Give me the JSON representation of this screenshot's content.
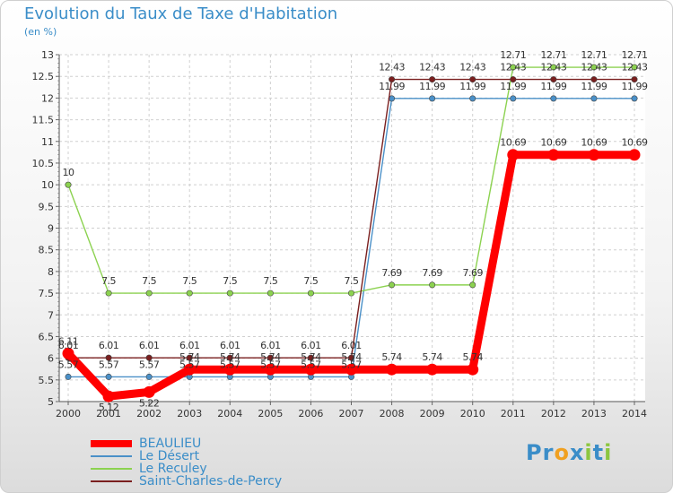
{
  "chart_data": {
    "type": "line",
    "title": "Evolution du Taux de Taxe d'Habitation",
    "ylabel": "(en %)",
    "xlabel": "",
    "ylim": [
      5,
      13
    ],
    "yticks": [
      "5",
      "5.5",
      "6",
      "6.5",
      "7",
      "7.5",
      "8",
      "8.5",
      "9",
      "9.5",
      "10",
      "10.5",
      "11",
      "11.5",
      "12",
      "12.5",
      "13"
    ],
    "categories": [
      "2000",
      "2001",
      "2002",
      "2003",
      "2004",
      "2005",
      "2006",
      "2007",
      "2008",
      "2009",
      "2010",
      "2011",
      "2012",
      "2013",
      "2014"
    ],
    "series": [
      {
        "name": "BEAULIEU",
        "color": "#ff0000",
        "values": [
          6.11,
          5.12,
          5.22,
          5.74,
          5.74,
          5.74,
          5.74,
          5.74,
          5.74,
          5.74,
          5.74,
          10.69,
          10.69,
          10.69,
          10.69
        ],
        "labels": [
          "6.11",
          "5.12",
          "5.22",
          "5.74",
          "5.74",
          "5.74",
          "5.74",
          "5.74",
          "5.74",
          "5.74",
          "5.74",
          "10.69",
          "10.69",
          "10.69",
          "10.69"
        ]
      },
      {
        "name": "Le Désert",
        "color": "#4a90c8",
        "values": [
          5.57,
          5.57,
          5.57,
          5.57,
          5.57,
          5.57,
          5.57,
          5.57,
          11.99,
          11.99,
          11.99,
          11.99,
          11.99,
          11.99,
          11.99
        ],
        "labels": [
          "5.57",
          "5.57",
          "5.57",
          "5.57",
          "5.57",
          "5.57",
          "5.57",
          "5.57",
          "11.99",
          "11.99",
          "11.99",
          "11.99",
          "11.99",
          "11.99",
          "11.99"
        ]
      },
      {
        "name": "Le Reculey",
        "color": "#8cd250",
        "values": [
          10,
          7.5,
          7.5,
          7.5,
          7.5,
          7.5,
          7.5,
          7.5,
          7.69,
          7.69,
          7.69,
          12.71,
          12.71,
          12.71,
          12.71
        ],
        "labels": [
          "10",
          "7.5",
          "7.5",
          "7.5",
          "7.5",
          "7.5",
          "7.5",
          "7.5",
          "7.69",
          "7.69",
          "7.69",
          "12.71",
          "12.71",
          "12.71",
          "12.71"
        ]
      },
      {
        "name": "Saint-Charles-de-Percy",
        "color": "#7a1f1f",
        "values": [
          6.01,
          6.01,
          6.01,
          6.01,
          6.01,
          6.01,
          6.01,
          6.01,
          12.43,
          12.43,
          12.43,
          12.43,
          12.43,
          12.43,
          12.43
        ],
        "labels": [
          "6.01",
          "6.01",
          "6.01",
          "6.01",
          "6.01",
          "6.01",
          "6.01",
          "6.01",
          "12.43",
          "12.43",
          "12.43",
          "12.43",
          "12.43",
          "12.43",
          "12.43"
        ]
      }
    ]
  },
  "legend": {
    "items": [
      {
        "label": "BEAULIEU",
        "color": "#ff0000"
      },
      {
        "label": "Le Désert",
        "color": "#4a90c8"
      },
      {
        "label": "Le Reculey",
        "color": "#8cd250"
      },
      {
        "label": "Saint-Charles-de-Percy",
        "color": "#7a1f1f"
      }
    ]
  },
  "logo": {
    "letters": [
      "P",
      "r",
      "o",
      "x",
      "i",
      "t",
      "i"
    ],
    "colors": [
      "#3a8dc8",
      "#3a8dc8",
      "#f0a020",
      "#3a8dc8",
      "#8cc63f",
      "#3a8dc8",
      "#8cc63f"
    ]
  }
}
